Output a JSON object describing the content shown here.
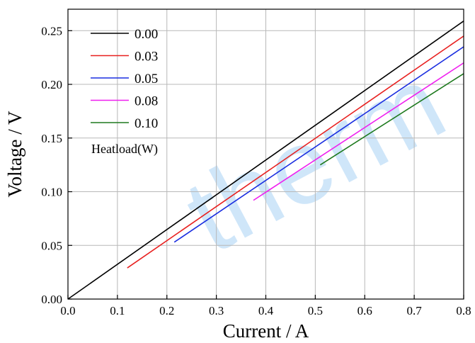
{
  "chart_data": {
    "type": "line",
    "title": "",
    "xlabel": "Current / A",
    "ylabel": "Voltage / V",
    "xlim": [
      0.0,
      0.8
    ],
    "ylim": [
      0.0,
      0.27
    ],
    "xticks": [
      "0.0",
      "0.1",
      "0.2",
      "0.3",
      "0.4",
      "0.5",
      "0.6",
      "0.7",
      "0.8"
    ],
    "yticks": [
      "0.00",
      "0.05",
      "0.10",
      "0.15",
      "0.20",
      "0.25"
    ],
    "grid": true,
    "legend_title": "Heatload(W)",
    "legend_position": "top-left",
    "watermark": "therm",
    "series": [
      {
        "name": "0.00",
        "color": "#000000",
        "x": [
          0.0,
          0.8
        ],
        "y": [
          0.0,
          0.259
        ]
      },
      {
        "name": "0.03",
        "color": "#e8201f",
        "x": [
          0.12,
          0.8
        ],
        "y": [
          0.029,
          0.245
        ]
      },
      {
        "name": "0.05",
        "color": "#1a2ee0",
        "x": [
          0.215,
          0.8
        ],
        "y": [
          0.053,
          0.235
        ]
      },
      {
        "name": "0.08",
        "color": "#ef1fef",
        "x": [
          0.375,
          0.8
        ],
        "y": [
          0.092,
          0.22
        ]
      },
      {
        "name": "0.10",
        "color": "#1e7a1e",
        "x": [
          0.51,
          0.8
        ],
        "y": [
          0.125,
          0.21
        ]
      }
    ]
  }
}
